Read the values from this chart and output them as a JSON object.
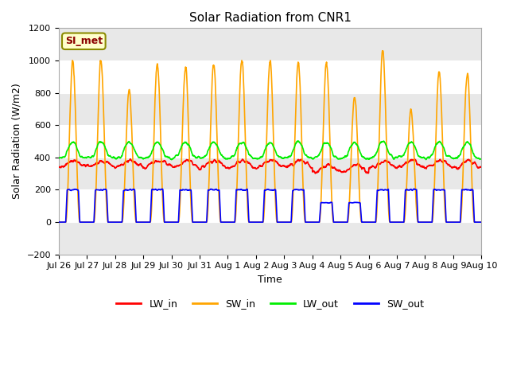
{
  "title": "Solar Radiation from CNR1",
  "xlabel": "Time",
  "ylabel": "Solar Radiation (W/m2)",
  "ylim": [
    -200,
    1200
  ],
  "yticks": [
    -200,
    0,
    200,
    400,
    600,
    800,
    1000,
    1200
  ],
  "annotation_text": "SI_met",
  "annotation_color": "#8B0000",
  "annotation_bg": "#FFFFCC",
  "annotation_edge": "#8B8B00",
  "fig_bg": "#FFFFFF",
  "plot_bg_light": "#FFFFFF",
  "plot_bg_dark": "#E8E8E8",
  "grid_color": "#C8C8C8",
  "series": {
    "LW_in": {
      "color": "#FF0000",
      "lw": 1.2
    },
    "SW_in": {
      "color": "#FFA500",
      "lw": 1.2
    },
    "LW_out": {
      "color": "#00EE00",
      "lw": 1.2
    },
    "SW_out": {
      "color": "#0000FF",
      "lw": 1.2
    }
  },
  "xtick_labels": [
    "Jul 26",
    "Jul 27",
    "Jul 28",
    "Jul 29",
    "Jul 30",
    "Jul 31",
    "Aug 1",
    "Aug 2",
    "Aug 3",
    "Aug 4",
    "Aug 5",
    "Aug 6",
    "Aug 7",
    "Aug 8",
    "Aug 9",
    "Aug 10"
  ],
  "n_days": 15,
  "pts_per_day": 144
}
